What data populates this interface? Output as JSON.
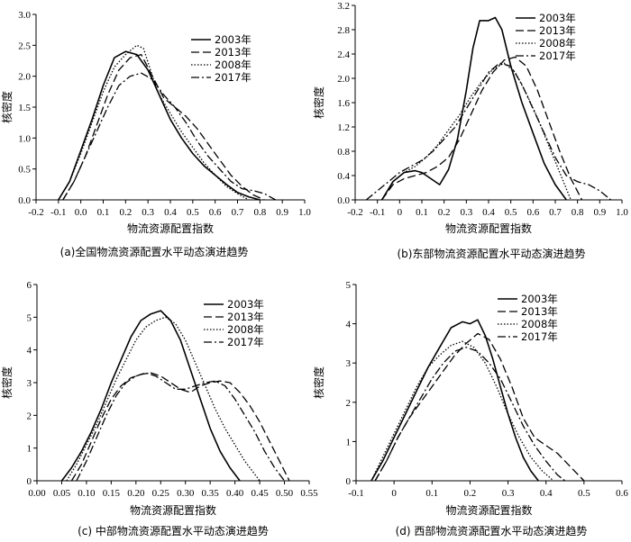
{
  "chart_data": [
    {
      "type": "line",
      "caption": "(a)全国物流资源配置水平动态演进趋势",
      "xlabel": "物流资源配置指数",
      "ylabel": "核密度",
      "xlim": [
        -0.2,
        1.0
      ],
      "ylim": [
        0,
        3.0
      ],
      "xticks": [
        -0.2,
        -0.1,
        0.0,
        0.1,
        0.2,
        0.3,
        0.4,
        0.5,
        0.6,
        0.7,
        0.8,
        0.9,
        1.0
      ],
      "xtick_labels": [
        "-0.2",
        "-0.1",
        "0.0",
        "0.1",
        "0.2",
        "0.3",
        "0.4",
        "0.5",
        "0.6",
        "0.7",
        "0.8",
        "0.9",
        "1.0"
      ],
      "yticks": [
        0,
        0.5,
        1.0,
        1.5,
        2.0,
        2.5,
        3.0
      ],
      "ytick_labels": [
        "0.0",
        "0.5",
        "1.0",
        "1.5",
        "2.0",
        "2.5",
        "3.0"
      ],
      "legend_position": "top-right",
      "series": [
        {
          "name": "2003年",
          "style": "solid",
          "x": [
            -0.1,
            -0.05,
            0.0,
            0.05,
            0.1,
            0.15,
            0.2,
            0.25,
            0.3,
            0.35,
            0.4,
            0.45,
            0.5,
            0.55,
            0.6,
            0.65,
            0.7,
            0.75,
            0.8
          ],
          "y": [
            0.0,
            0.3,
            0.8,
            1.3,
            1.85,
            2.3,
            2.4,
            2.35,
            2.1,
            1.7,
            1.3,
            1.0,
            0.75,
            0.55,
            0.4,
            0.25,
            0.12,
            0.05,
            0.0
          ]
        },
        {
          "name": "2013年",
          "style": "dashed",
          "x": [
            -0.08,
            -0.03,
            0.02,
            0.07,
            0.12,
            0.17,
            0.22,
            0.27,
            0.32,
            0.37,
            0.42,
            0.47,
            0.52,
            0.57,
            0.62,
            0.67,
            0.72,
            0.77,
            0.82
          ],
          "y": [
            0.0,
            0.3,
            0.7,
            1.2,
            1.7,
            2.1,
            2.3,
            2.35,
            2.0,
            1.65,
            1.5,
            1.35,
            1.15,
            0.9,
            0.65,
            0.4,
            0.22,
            0.08,
            0.0
          ]
        },
        {
          "name": "2008年",
          "style": "dotted",
          "x": [
            -0.1,
            -0.05,
            0.0,
            0.05,
            0.1,
            0.15,
            0.2,
            0.25,
            0.28,
            0.32,
            0.35,
            0.4,
            0.45,
            0.5,
            0.55,
            0.6,
            0.65,
            0.7,
            0.75
          ],
          "y": [
            0.0,
            0.3,
            0.75,
            1.25,
            1.75,
            2.15,
            2.35,
            2.5,
            2.45,
            2.0,
            1.7,
            1.4,
            1.1,
            0.85,
            0.6,
            0.4,
            0.22,
            0.1,
            0.0
          ]
        },
        {
          "name": "2017年",
          "style": "dashdot",
          "x": [
            -0.08,
            -0.03,
            0.02,
            0.07,
            0.12,
            0.17,
            0.22,
            0.27,
            0.32,
            0.37,
            0.42,
            0.47,
            0.52,
            0.57,
            0.62,
            0.67,
            0.72,
            0.77,
            0.82,
            0.87
          ],
          "y": [
            0.0,
            0.3,
            0.7,
            1.1,
            1.5,
            1.85,
            2.0,
            2.05,
            1.95,
            1.7,
            1.5,
            1.25,
            0.95,
            0.7,
            0.5,
            0.3,
            0.18,
            0.15,
            0.1,
            0.0
          ]
        }
      ]
    },
    {
      "type": "line",
      "caption": "(b)东部物流资源配置水平动态演进趋势",
      "xlabel": "物流资源配置指数",
      "ylabel": "核密度",
      "xlim": [
        -0.2,
        1.0
      ],
      "ylim": [
        0,
        3.2
      ],
      "xticks": [
        -0.2,
        -0.1,
        0.0,
        0.1,
        0.2,
        0.3,
        0.4,
        0.5,
        0.6,
        0.7,
        0.8,
        0.9,
        1.0
      ],
      "xtick_labels": [
        "-0.2",
        "-0.1",
        "0",
        "0.1",
        "0.2",
        "0.3",
        "0.4",
        "0.5",
        "0.6",
        "0.7",
        "0.8",
        "0.9",
        "1.0"
      ],
      "yticks": [
        0,
        0.4,
        0.8,
        1.2,
        1.6,
        2.0,
        2.4,
        2.8,
        3.2
      ],
      "ytick_labels": [
        "0.0",
        "0.4",
        "0.8",
        "1.2",
        "1.6",
        "2.0",
        "2.4",
        "2.8",
        "3.2"
      ],
      "legend_position": "top-right",
      "series": [
        {
          "name": "2003年",
          "style": "solid",
          "x": [
            -0.08,
            -0.03,
            0.02,
            0.07,
            0.1,
            0.14,
            0.18,
            0.22,
            0.26,
            0.3,
            0.33,
            0.36,
            0.4,
            0.43,
            0.46,
            0.5,
            0.55,
            0.6,
            0.65,
            0.7,
            0.75
          ],
          "y": [
            0.0,
            0.3,
            0.45,
            0.48,
            0.45,
            0.35,
            0.25,
            0.5,
            1.0,
            1.8,
            2.5,
            2.95,
            2.95,
            3.0,
            2.8,
            2.2,
            1.6,
            1.1,
            0.6,
            0.25,
            0.0
          ]
        },
        {
          "name": "2013年",
          "style": "dashed",
          "x": [
            -0.08,
            -0.03,
            0.02,
            0.07,
            0.12,
            0.17,
            0.22,
            0.27,
            0.32,
            0.37,
            0.42,
            0.47,
            0.52,
            0.57,
            0.62,
            0.67,
            0.72,
            0.77,
            0.82
          ],
          "y": [
            0.0,
            0.25,
            0.35,
            0.4,
            0.45,
            0.55,
            0.7,
            1.0,
            1.4,
            1.8,
            2.1,
            2.3,
            2.35,
            2.2,
            1.8,
            1.3,
            0.8,
            0.35,
            0.0
          ]
        },
        {
          "name": "2008年",
          "style": "dotted",
          "x": [
            -0.08,
            -0.03,
            0.02,
            0.07,
            0.12,
            0.17,
            0.22,
            0.27,
            0.32,
            0.37,
            0.42,
            0.47,
            0.52,
            0.57,
            0.62,
            0.67,
            0.72,
            0.77
          ],
          "y": [
            0.0,
            0.3,
            0.45,
            0.55,
            0.7,
            0.9,
            1.15,
            1.4,
            1.7,
            1.95,
            2.15,
            2.25,
            2.1,
            1.75,
            1.35,
            0.9,
            0.45,
            0.0
          ]
        },
        {
          "name": "2017年",
          "style": "dashdot",
          "x": [
            -0.15,
            -0.1,
            -0.05,
            0.0,
            0.05,
            0.1,
            0.15,
            0.2,
            0.25,
            0.3,
            0.35,
            0.4,
            0.45,
            0.5,
            0.55,
            0.6,
            0.65,
            0.7,
            0.75,
            0.8,
            0.85,
            0.9,
            0.95
          ],
          "y": [
            0.0,
            0.15,
            0.3,
            0.45,
            0.55,
            0.65,
            0.8,
            1.0,
            1.2,
            1.5,
            1.8,
            2.1,
            2.25,
            2.2,
            1.9,
            1.5,
            1.1,
            0.7,
            0.4,
            0.3,
            0.25,
            0.15,
            0.0
          ]
        }
      ]
    },
    {
      "type": "line",
      "caption": "(c) 中部物流资源配置水平动态演进趋势",
      "xlabel": "物流资源配置指数",
      "ylabel": "核密度",
      "xlim": [
        0.0,
        0.55
      ],
      "ylim": [
        0,
        6
      ],
      "xticks": [
        0.0,
        0.05,
        0.1,
        0.15,
        0.2,
        0.25,
        0.3,
        0.35,
        0.4,
        0.45,
        0.5,
        0.55
      ],
      "xtick_labels": [
        "0.00",
        "0.05",
        "0.10",
        "0.15",
        "0.20",
        "0.25",
        "0.30",
        "0.35",
        "0.40",
        "0.45",
        "0.50",
        "0.55"
      ],
      "yticks": [
        0,
        1,
        2,
        3,
        4,
        5,
        6
      ],
      "ytick_labels": [
        "0",
        "1",
        "2",
        "3",
        "4",
        "5",
        "6"
      ],
      "legend_position": "top-right",
      "series": [
        {
          "name": "2003年",
          "style": "solid",
          "x": [
            0.05,
            0.07,
            0.09,
            0.11,
            0.13,
            0.15,
            0.17,
            0.19,
            0.21,
            0.23,
            0.25,
            0.27,
            0.29,
            0.31,
            0.33,
            0.35,
            0.37,
            0.39,
            0.41
          ],
          "y": [
            0.0,
            0.4,
            0.9,
            1.5,
            2.2,
            3.0,
            3.7,
            4.4,
            4.9,
            5.1,
            5.2,
            4.9,
            4.3,
            3.4,
            2.5,
            1.6,
            0.9,
            0.4,
            0.0
          ]
        },
        {
          "name": "2013年",
          "style": "dashed",
          "x": [
            0.07,
            0.09,
            0.11,
            0.13,
            0.15,
            0.17,
            0.19,
            0.21,
            0.23,
            0.25,
            0.27,
            0.29,
            0.31,
            0.33,
            0.35,
            0.37,
            0.39,
            0.41,
            0.43,
            0.45,
            0.47,
            0.49,
            0.51
          ],
          "y": [
            0.0,
            0.5,
            1.2,
            1.9,
            2.5,
            2.9,
            3.15,
            3.25,
            3.3,
            3.2,
            3.0,
            2.8,
            2.7,
            2.9,
            3.0,
            3.05,
            3.0,
            2.7,
            2.3,
            1.8,
            1.2,
            0.6,
            0.0
          ]
        },
        {
          "name": "2008年",
          "style": "dotted",
          "x": [
            0.06,
            0.08,
            0.1,
            0.12,
            0.14,
            0.16,
            0.18,
            0.2,
            0.22,
            0.24,
            0.26,
            0.28,
            0.3,
            0.32,
            0.34,
            0.36,
            0.38,
            0.4,
            0.42,
            0.44,
            0.45
          ],
          "y": [
            0.0,
            0.5,
            1.1,
            1.7,
            2.4,
            3.1,
            3.7,
            4.3,
            4.7,
            4.9,
            5.0,
            4.8,
            4.3,
            3.6,
            2.9,
            2.2,
            1.6,
            1.1,
            0.6,
            0.2,
            0.0
          ]
        },
        {
          "name": "2017年",
          "style": "dashdot",
          "x": [
            0.08,
            0.1,
            0.12,
            0.14,
            0.16,
            0.18,
            0.2,
            0.22,
            0.24,
            0.26,
            0.28,
            0.3,
            0.32,
            0.34,
            0.36,
            0.38,
            0.4,
            0.42,
            0.44,
            0.46,
            0.48,
            0.5
          ],
          "y": [
            0.0,
            0.6,
            1.3,
            2.0,
            2.6,
            3.0,
            3.2,
            3.3,
            3.2,
            3.0,
            2.8,
            2.8,
            2.9,
            3.0,
            3.05,
            2.9,
            2.5,
            2.0,
            1.5,
            0.9,
            0.4,
            0.0
          ]
        }
      ]
    },
    {
      "type": "line",
      "caption": "(d) 西部物流资源配置水平动态演进趋势",
      "xlabel": "物流资源配置指数",
      "ylabel": "核密度",
      "xlim": [
        -0.1,
        0.6
      ],
      "ylim": [
        0,
        5
      ],
      "xticks": [
        -0.1,
        0.0,
        0.1,
        0.2,
        0.3,
        0.4,
        0.5,
        0.6
      ],
      "xtick_labels": [
        "-0.1",
        "0",
        "0.1",
        "0.2",
        "0.3",
        "0.4",
        "0.5",
        "0.6"
      ],
      "yticks": [
        0,
        1,
        2,
        3,
        4,
        5
      ],
      "ytick_labels": [
        "0",
        "1",
        "2",
        "3",
        "4",
        "5"
      ],
      "legend_position": "top-right",
      "series": [
        {
          "name": "2003年",
          "style": "solid",
          "x": [
            -0.06,
            -0.03,
            0.0,
            0.03,
            0.06,
            0.09,
            0.12,
            0.15,
            0.18,
            0.2,
            0.22,
            0.24,
            0.26,
            0.28,
            0.3,
            0.32,
            0.34,
            0.36,
            0.38
          ],
          "y": [
            0.0,
            0.5,
            1.1,
            1.7,
            2.3,
            2.9,
            3.4,
            3.9,
            4.05,
            4.0,
            4.1,
            3.7,
            3.1,
            2.4,
            1.7,
            1.1,
            0.6,
            0.25,
            0.0
          ]
        },
        {
          "name": "2013年",
          "style": "dashed",
          "x": [
            -0.05,
            -0.02,
            0.01,
            0.04,
            0.07,
            0.1,
            0.13,
            0.16,
            0.19,
            0.22,
            0.25,
            0.28,
            0.31,
            0.34,
            0.37,
            0.4,
            0.43,
            0.46,
            0.49,
            0.5
          ],
          "y": [
            0.0,
            0.5,
            1.1,
            1.6,
            2.0,
            2.4,
            2.8,
            3.2,
            3.5,
            3.75,
            3.6,
            3.1,
            2.4,
            1.6,
            1.1,
            0.9,
            0.7,
            0.4,
            0.1,
            0.0
          ]
        },
        {
          "name": "2008年",
          "style": "dotted",
          "x": [
            -0.06,
            -0.03,
            0.0,
            0.03,
            0.06,
            0.09,
            0.12,
            0.15,
            0.18,
            0.21,
            0.24,
            0.27,
            0.3,
            0.33,
            0.36,
            0.39,
            0.42
          ],
          "y": [
            0.0,
            0.6,
            1.2,
            1.8,
            2.4,
            2.9,
            3.2,
            3.45,
            3.55,
            3.4,
            3.0,
            2.4,
            1.7,
            1.1,
            0.6,
            0.25,
            0.0
          ]
        },
        {
          "name": "2017年",
          "style": "dashdot",
          "x": [
            -0.05,
            -0.02,
            0.01,
            0.04,
            0.07,
            0.1,
            0.13,
            0.16,
            0.19,
            0.22,
            0.25,
            0.28,
            0.31,
            0.34,
            0.37,
            0.4,
            0.43,
            0.45
          ],
          "y": [
            0.0,
            0.5,
            1.1,
            1.6,
            2.1,
            2.6,
            3.0,
            3.3,
            3.4,
            3.3,
            3.0,
            2.6,
            2.0,
            1.4,
            0.9,
            0.5,
            0.15,
            0.0
          ]
        }
      ]
    }
  ]
}
